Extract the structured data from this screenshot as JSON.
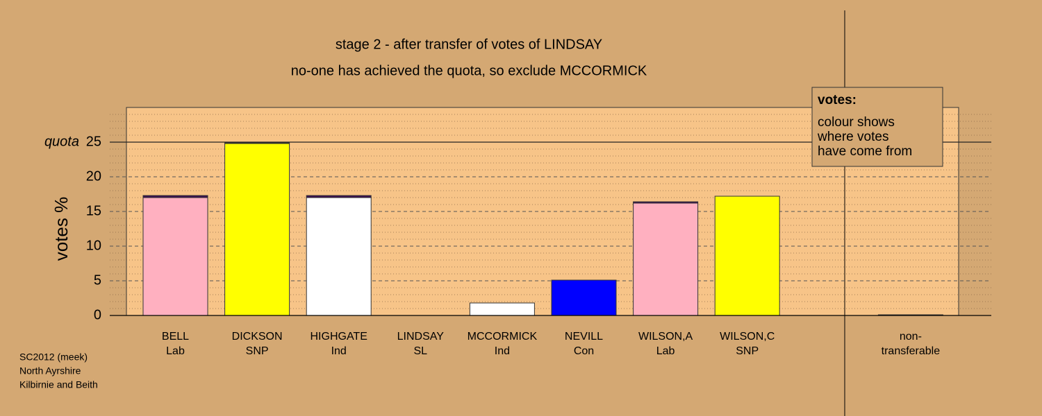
{
  "chart_data": {
    "type": "stacked-bar",
    "title": "stage 2 - after transfer of votes of LINDSAY",
    "subtitle": "no-one has achieved the quota, so exclude MCCORMICK",
    "y_label": "votes %",
    "categories": [
      "BELL",
      "DICKSON",
      "HIGHGATE",
      "LINDSAY",
      "MCCORMICK",
      "NEVILL",
      "WILSON,A",
      "WILSON,C",
      "non-"
    ],
    "parties": [
      "Lab",
      "SNP",
      "Ind",
      "SL",
      "Ind",
      "Con",
      "Lab",
      "SNP",
      "transferable"
    ],
    "series": [
      {
        "colors": [
          "#ffb0c0",
          "#ffff00",
          "#ffffff",
          "#ffffff",
          "#ffffff",
          "#0000ff",
          "#ffb0c0",
          "#ffff00",
          "#3a1050"
        ],
        "values": [
          17.0,
          24.8,
          17.0,
          0,
          1.8,
          5.1,
          16.2,
          17.2,
          0
        ]
      },
      {
        "colors": [
          "#3a1050",
          "#3a1050",
          "#3a1050",
          "#3a1050",
          "#3a1050",
          "#3a1050",
          "#3a1050",
          "#3a1050",
          "#3a1050"
        ],
        "values": [
          0.3,
          0.1,
          0.3,
          0,
          0,
          0,
          0.2,
          0,
          0.1
        ]
      }
    ],
    "ylim": [
      0,
      30
    ],
    "yticks": [
      0,
      5,
      10,
      15,
      20,
      25
    ],
    "minor_yticks": [
      1,
      2,
      3,
      4,
      6,
      7,
      8,
      9,
      11,
      12,
      13,
      14,
      16,
      17,
      18,
      19,
      21,
      22,
      23,
      24,
      26,
      27,
      28,
      29
    ],
    "quota": {
      "value": 25,
      "label": "quota"
    },
    "legend": {
      "title": "votes:",
      "lines": [
        "colour shows",
        "where votes",
        "have come from"
      ]
    },
    "footer": [
      "SC2012 (meek)",
      "North Ayrshire",
      "Kilbirnie and Beith"
    ]
  }
}
